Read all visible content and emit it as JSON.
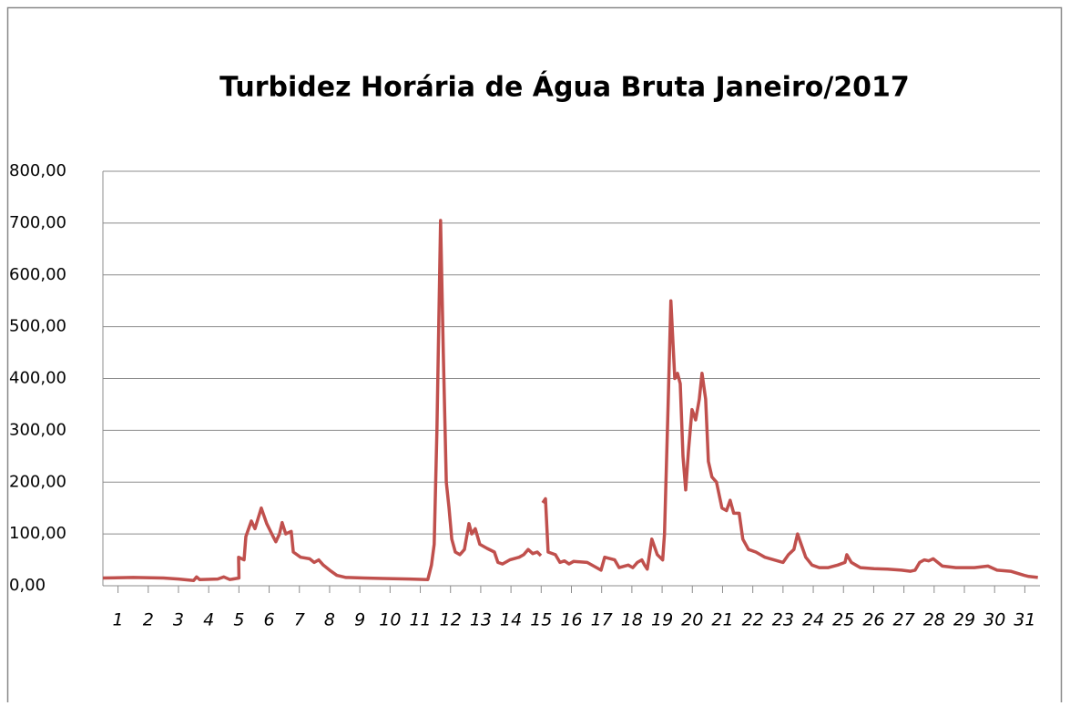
{
  "chart_data": {
    "type": "line",
    "title": "Turbidez Horária de Água Bruta Janeiro/2017",
    "xlim": [
      0.5,
      31.5
    ],
    "xticks": [
      1,
      2,
      3,
      4,
      5,
      6,
      7,
      8,
      9,
      10,
      11,
      12,
      13,
      14,
      15,
      16,
      17,
      18,
      19,
      20,
      21,
      22,
      23,
      24,
      25,
      26,
      27,
      28,
      29,
      30,
      31
    ],
    "ylim": [
      0,
      800
    ],
    "yticks": [
      {
        "value": 0,
        "label": "0,00"
      },
      {
        "value": 100,
        "label": "100,00"
      },
      {
        "value": 200,
        "label": "200,00"
      },
      {
        "value": 300,
        "label": "300,00"
      },
      {
        "value": 400,
        "label": "400,00"
      },
      {
        "value": 500,
        "label": "500,00"
      },
      {
        "value": 600,
        "label": "600,00"
      },
      {
        "value": 700,
        "label": "700,00"
      },
      {
        "value": 800,
        "label": "800,00"
      }
    ],
    "grid": true,
    "x": [
      0.5,
      1.5,
      2.5,
      3.0,
      3.5,
      3.6,
      3.7,
      4.3,
      4.5,
      4.7,
      5.0,
      4.99,
      5.17,
      5.23,
      5.41,
      5.53,
      5.74,
      5.92,
      6.13,
      6.22,
      6.34,
      6.43,
      6.55,
      6.73,
      6.8,
      7.04,
      7.34,
      7.49,
      7.64,
      7.79,
      8.0,
      8.24,
      8.54,
      9.14,
      9.75,
      10.65,
      11.25,
      11.37,
      11.46,
      11.55,
      11.67,
      11.76,
      11.86,
      11.95,
      12.04,
      12.16,
      12.31,
      12.46,
      12.61,
      12.7,
      12.82,
      12.97,
      13.21,
      13.45,
      13.57,
      13.72,
      13.96,
      14.27,
      14.42,
      14.57,
      14.72,
      14.87,
      14.99,
      15.0,
      15.05,
      15.14,
      15.23,
      15.47,
      15.62,
      15.77,
      15.92,
      16.07,
      16.52,
      16.83,
      16.98,
      17.1,
      17.43,
      17.58,
      17.88,
      18.03,
      18.18,
      18.33,
      18.42,
      18.51,
      18.66,
      18.84,
      19.02,
      19.08,
      19.2,
      19.29,
      19.42,
      19.51,
      19.6,
      19.69,
      19.78,
      19.87,
      19.99,
      20.11,
      20.23,
      20.32,
      20.44,
      20.53,
      20.65,
      20.8,
      20.98,
      21.13,
      21.25,
      21.37,
      21.55,
      21.67,
      21.86,
      22.1,
      22.25,
      22.4,
      22.7,
      23.0,
      23.18,
      23.36,
      23.48,
      23.6,
      23.75,
      23.96,
      24.2,
      24.5,
      24.81,
      25.05,
      25.11,
      25.26,
      25.41,
      25.56,
      26.01,
      26.46,
      26.92,
      27.22,
      27.37,
      27.52,
      27.67,
      27.82,
      27.97,
      28.12,
      28.27,
      28.72,
      29.33,
      29.78,
      30.08,
      30.53,
      30.98,
      31.13,
      31.43
    ],
    "series": [
      {
        "name": "Turbidez",
        "color": "#c0504d",
        "values": [
          15,
          16,
          15,
          13,
          10,
          17,
          12,
          13,
          17,
          12,
          15,
          55,
          50,
          95,
          125,
          110,
          150,
          120,
          95,
          85,
          100,
          122,
          100,
          105,
          65,
          55,
          52,
          45,
          50,
          40,
          30,
          20,
          16,
          15,
          14,
          13,
          12,
          40,
          80,
          300,
          705,
          450,
          200,
          150,
          90,
          65,
          60,
          70,
          120,
          100,
          110,
          80,
          72,
          65,
          45,
          42,
          50,
          55,
          60,
          70,
          62,
          65,
          58,
          null,
          160,
          168,
          65,
          60,
          45,
          48,
          42,
          47,
          45,
          35,
          30,
          55,
          50,
          35,
          40,
          35,
          45,
          50,
          40,
          32,
          90,
          60,
          50,
          100,
          350,
          550,
          400,
          410,
          390,
          250,
          185,
          260,
          340,
          320,
          360,
          410,
          360,
          240,
          210,
          200,
          150,
          145,
          165,
          140,
          140,
          90,
          70,
          65,
          60,
          55,
          50,
          45,
          60,
          70,
          100,
          80,
          55,
          40,
          35,
          35,
          40,
          45,
          60,
          45,
          40,
          35,
          33,
          32,
          30,
          28,
          30,
          45,
          50,
          48,
          52,
          45,
          38,
          35,
          35,
          38,
          30,
          28,
          20,
          18,
          16
        ]
      }
    ]
  }
}
